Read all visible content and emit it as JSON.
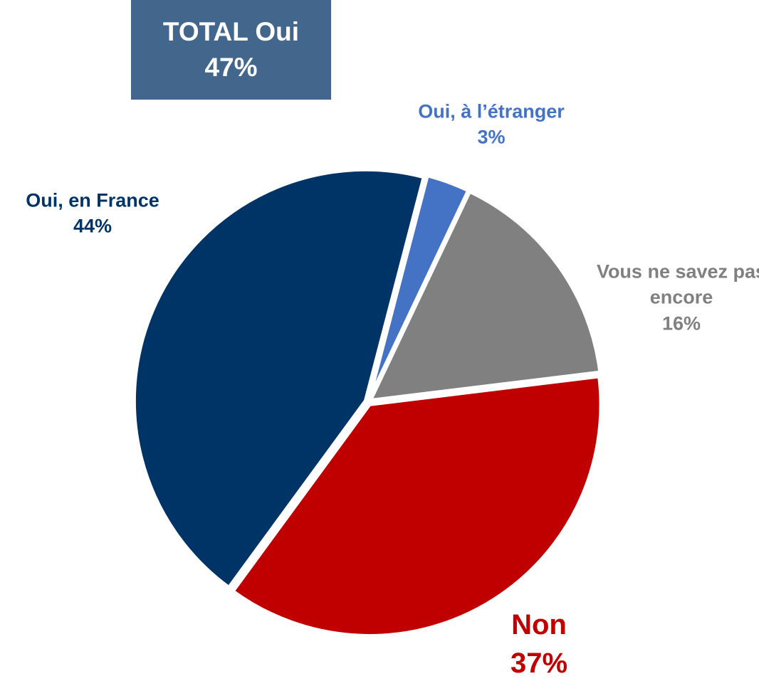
{
  "chart_data": {
    "type": "pie",
    "categories": [
      "Oui, à l’étranger",
      "Vous ne savez pas encore",
      "Non",
      "Oui, en France"
    ],
    "values": [
      3,
      16,
      37,
      44
    ],
    "value_labels": [
      "3%",
      "16%",
      "37%",
      "44%"
    ],
    "colors": [
      "#4472c4",
      "#808080",
      "#c00000",
      "#003366"
    ],
    "annotation": {
      "text": "TOTAL Oui",
      "value_label": "47%"
    }
  }
}
